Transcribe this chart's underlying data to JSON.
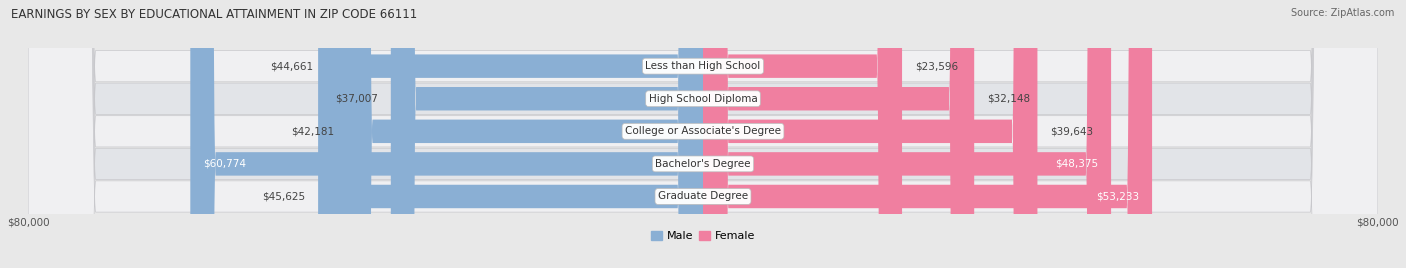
{
  "title": "EARNINGS BY SEX BY EDUCATIONAL ATTAINMENT IN ZIP CODE 66111",
  "source": "Source: ZipAtlas.com",
  "categories": [
    "Less than High School",
    "High School Diploma",
    "College or Associate's Degree",
    "Bachelor's Degree",
    "Graduate Degree"
  ],
  "male_values": [
    44661,
    37007,
    42181,
    60774,
    45625
  ],
  "female_values": [
    23596,
    32148,
    39643,
    48375,
    53233
  ],
  "male_color": "#8aafd4",
  "female_color": "#f07fa0",
  "bar_height": 0.72,
  "x_max": 80000,
  "background_color": "#e8e8e8",
  "row_bg_color": "#f0f0f2",
  "row_bg_color2": "#e2e4e8",
  "title_fontsize": 8.5,
  "source_fontsize": 7,
  "label_fontsize": 7.5,
  "category_fontsize": 7.5,
  "tick_fontsize": 7.5,
  "legend_fontsize": 8,
  "male_inside_threshold": 55000,
  "female_inside_threshold": 40000
}
